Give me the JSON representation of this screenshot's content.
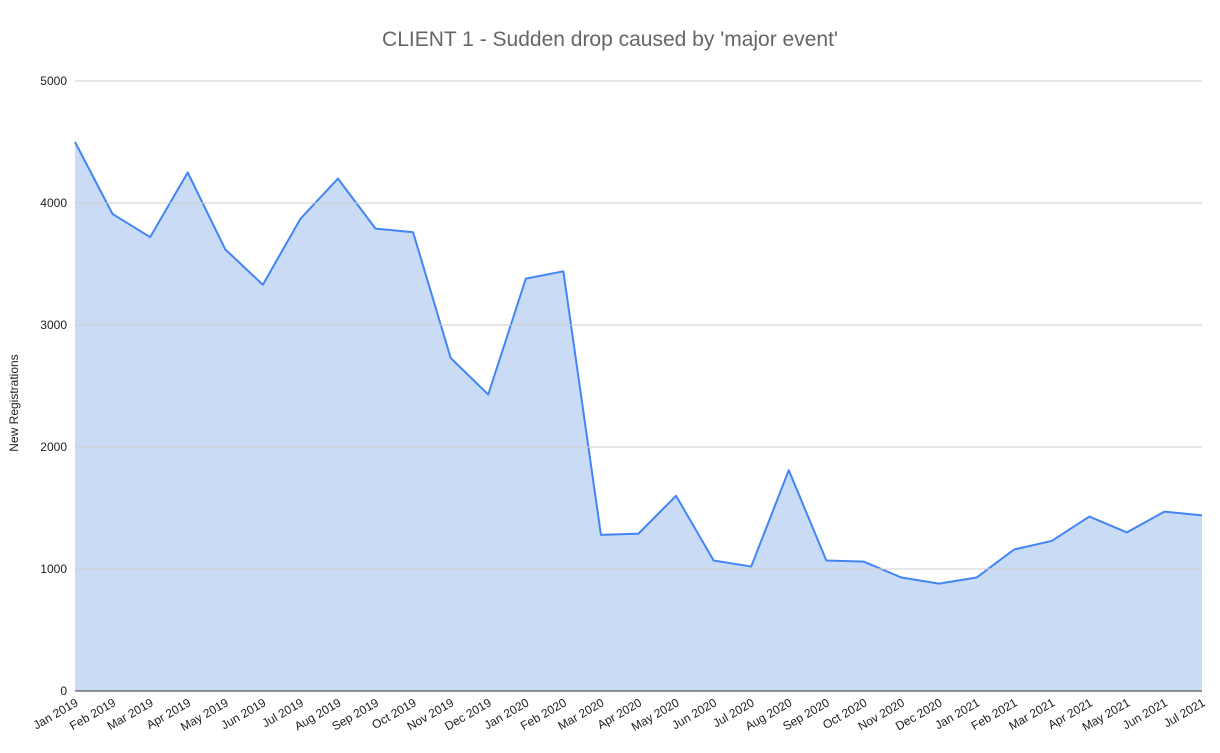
{
  "chart_data": {
    "type": "area",
    "title": "CLIENT 1 - Sudden drop caused by 'major event'",
    "y_label": "New Registrations",
    "categories": [
      "Jan 2019",
      "Feb 2019",
      "Mar 2019",
      "Apr 2019",
      "May 2019",
      "Jun 2019",
      "Jul 2019",
      "Aug 2019",
      "Sep 2019",
      "Oct 2019",
      "Nov 2019",
      "Dec 2019",
      "Jan 2020",
      "Feb 2020",
      "Mar 2020",
      "Apr 2020",
      "May 2020",
      "Jun 2020",
      "Jul 2020",
      "Aug 2020",
      "Sep 2020",
      "Oct 2020",
      "Nov 2020",
      "Dec 2020",
      "Jan 2021",
      "Feb 2021",
      "Mar 2021",
      "Apr 2021",
      "May 2021",
      "Jun 2021",
      "Jul 2021"
    ],
    "values": [
      4500,
      3910,
      3720,
      4250,
      3620,
      3330,
      3870,
      4200,
      3790,
      3760,
      2730,
      2430,
      3380,
      3440,
      1280,
      1290,
      1600,
      1070,
      1020,
      1810,
      1070,
      1060,
      930,
      880,
      930,
      1160,
      1230,
      1430,
      1300,
      1470,
      1440
    ],
    "color": "#4285f4",
    "fill": "#c1d5f5",
    "ylim": [
      0,
      5000
    ],
    "yticks": [
      0,
      1000,
      2000,
      3000,
      4000,
      5000
    ],
    "grid": true
  }
}
